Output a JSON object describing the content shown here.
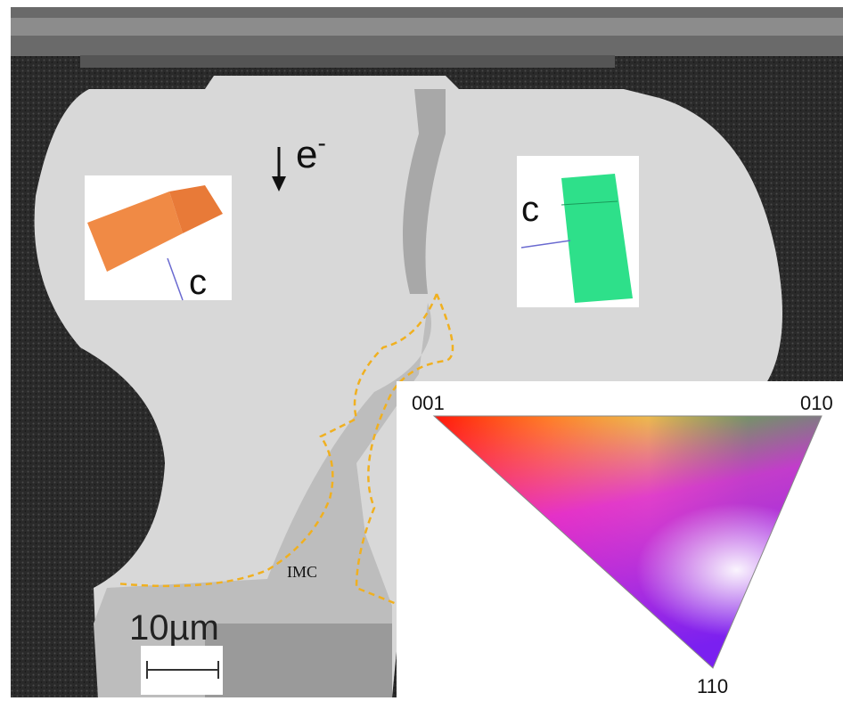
{
  "labels": {
    "electron": "e",
    "electron_charge": "-",
    "crystal_left_axis": "c",
    "crystal_right_axis": "c",
    "imc": "IMC",
    "scale_bar": "10µm"
  },
  "color_key": {
    "corners": [
      "001",
      "010",
      "110"
    ]
  }
}
